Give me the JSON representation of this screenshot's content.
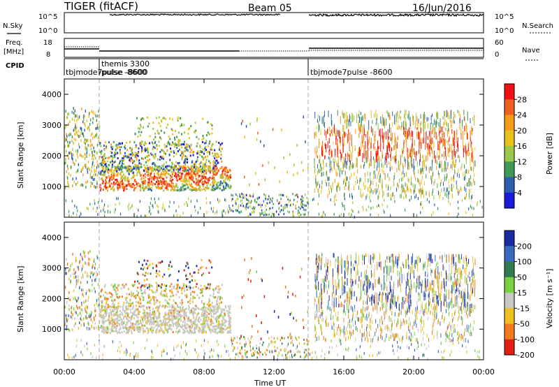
{
  "header": {
    "radar": "TIGER (fitACF)",
    "beam": "Beam 05",
    "date": "16/Jun/2016"
  },
  "sky_panel": {
    "label": "N.Sky",
    "left_ticks": [
      "10^5",
      "10^0"
    ],
    "right_ticks": [
      "10^5",
      "10^0"
    ],
    "right_label": "N.Search"
  },
  "freq_panel": {
    "label_line1": "Freq.",
    "label_line2": "[MHz]",
    "left_ticks": [
      "18",
      "8"
    ],
    "right_ticks": [
      "60",
      "0"
    ],
    "right_label": "Nave"
  },
  "cpid": {
    "label": "CPID",
    "segments": [
      {
        "text": "tbjmode7pulse -8600",
        "start_hour": 0
      },
      {
        "text": "themis 3300",
        "start_hour": 2
      },
      {
        "text": "tbjmode7pulse -8600",
        "start_hour": 14
      }
    ],
    "second_line": "pulse -8600"
  },
  "axes": {
    "x_ticks": [
      "00:00",
      "04:00",
      "08:00",
      "12:00",
      "16:00",
      "20:00",
      "00:00"
    ],
    "x_label": "Time UT",
    "y_ticks": [
      "1000",
      "2000",
      "3000",
      "4000"
    ],
    "y_label": "Slant Range [km]"
  },
  "power_colorbar": {
    "label": "Power [dB]",
    "ticks": [
      "28",
      "24",
      "20",
      "16",
      "12",
      "8",
      "4"
    ],
    "colors": [
      "#ee1111",
      "#f26020",
      "#f59a1a",
      "#e8c21a",
      "#9bc94a",
      "#3f9a55",
      "#2c5fb0",
      "#1919d9"
    ]
  },
  "velocity_colorbar": {
    "label": "Velocity [m s⁻¹]",
    "ticks": [
      "200",
      "100",
      "50",
      "15",
      "-15",
      "-50",
      "-100",
      "-200"
    ],
    "colors": [
      "#1a2aa0",
      "#3a6ac0",
      "#2f7a50",
      "#7ad040",
      "#c8c8c0",
      "#f0c020",
      "#f07a20",
      "#e02010"
    ]
  },
  "chart_data": {
    "type": "heatmap",
    "x_range_hours": [
      0,
      24
    ],
    "y_range_km": [
      0,
      4500
    ],
    "panels": [
      {
        "name": "Power",
        "units": "dB",
        "scatter_regions": [
          {
            "t_start": 2.0,
            "t_end": 9.5,
            "r_start": 900,
            "r_end": 1800,
            "level": 24
          },
          {
            "t_start": 2.0,
            "t_end": 9.5,
            "r_start": 1500,
            "r_end": 2500,
            "level": 10
          },
          {
            "t_start": 14.3,
            "t_end": 23.5,
            "r_start": 1800,
            "r_end": 3500,
            "level": 22
          },
          {
            "t_start": 0.0,
            "t_end": 2.0,
            "r_start": 1500,
            "r_end": 3500,
            "level": 16
          }
        ]
      },
      {
        "name": "Velocity",
        "units": "m/s",
        "scatter_regions": [
          {
            "t_start": 2.0,
            "t_end": 9.5,
            "r_start": 900,
            "r_end": 1800,
            "level": 0
          },
          {
            "t_start": 14.3,
            "t_end": 23.5,
            "r_start": 1800,
            "r_end": 3500,
            "level": 0
          }
        ]
      }
    ]
  }
}
